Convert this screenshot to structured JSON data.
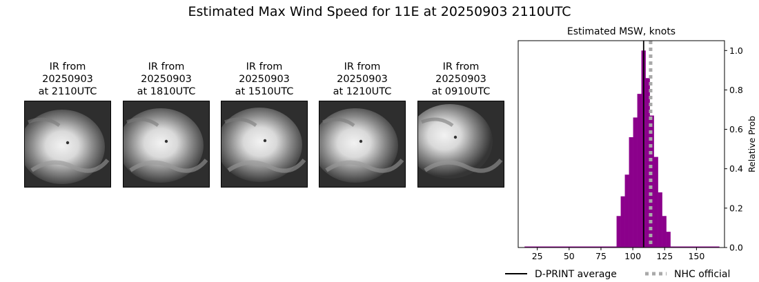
{
  "figure": {
    "title": "Estimated Max Wind Speed for 11E at 20250903 2110UTC"
  },
  "ir_panels": [
    {
      "line1": "IR from",
      "line2": "20250903",
      "line3": "at 2110UTC"
    },
    {
      "line1": "IR from",
      "line2": "20250903",
      "line3": "at 1810UTC"
    },
    {
      "line1": "IR from",
      "line2": "20250903",
      "line3": "at 1510UTC"
    },
    {
      "line1": "IR from",
      "line2": "20250903",
      "line3": "at 1210UTC"
    },
    {
      "line1": "IR from",
      "line2": "20250903",
      "line3": "at 0910UTC"
    }
  ],
  "chart_data": {
    "type": "bar",
    "title": "Estimated MSW, knots",
    "xlabel": "",
    "ylabel": "Relative Prob",
    "xlim": [
      10,
      172
    ],
    "ylim": [
      0,
      1.05
    ],
    "xticks": [
      25,
      50,
      75,
      100,
      125,
      150
    ],
    "yticks": [
      0.0,
      0.2,
      0.4,
      0.6,
      0.8,
      1.0
    ],
    "ytick_labels": [
      "0.0",
      "0.2",
      "0.4",
      "0.6",
      "0.8",
      "1.0"
    ],
    "bin_width": 3.25,
    "bin_starts": [
      87.25,
      90.5,
      93.75,
      97.0,
      100.25,
      103.5,
      106.75,
      110.0,
      113.25,
      116.5,
      119.75,
      123.0,
      126.25
    ],
    "values": [
      0.16,
      0.26,
      0.37,
      0.56,
      0.66,
      0.78,
      1.0,
      0.86,
      0.67,
      0.46,
      0.28,
      0.16,
      0.08
    ],
    "baseline_x": [
      15,
      168
    ],
    "bar_color": "#8b008b",
    "dprint_average": 108.5,
    "nhc_official": 114,
    "legend": {
      "placement": "bottom",
      "entries": [
        {
          "label": "D-PRINT average",
          "color": "#000000",
          "style": "solid"
        },
        {
          "label": "NHC official",
          "color": "#a9a9a9",
          "style": "dotted"
        }
      ]
    }
  }
}
